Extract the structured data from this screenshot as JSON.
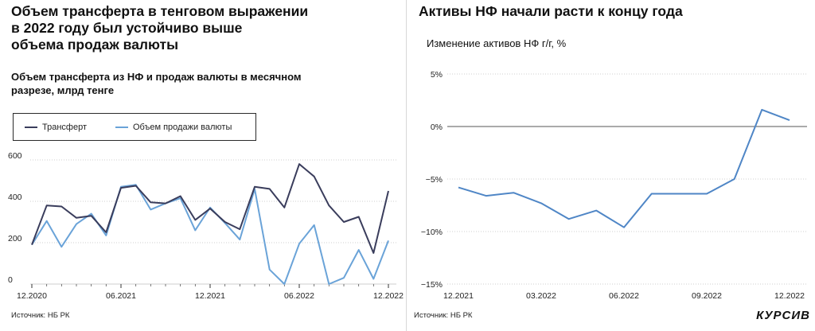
{
  "left": {
    "title_lines": [
      "Объем трансферта в тенговом выражении",
      "в 2022 году был устойчиво выше",
      "объема продаж валюты"
    ],
    "subtitle_lines": [
      "Объем трансферта из НФ и продаж валюты в месячном",
      "разрезе, млрд тенге"
    ],
    "source": "Источник: НБ РК"
  },
  "right": {
    "title": "Активы НФ начали расти к концу года",
    "subtitle": "Изменение активов НФ г/г, %",
    "source": "Источник: НБ РК",
    "logo": "КУРСИВ"
  },
  "chart_data": [
    {
      "type": "line",
      "categories": [
        "12.2020",
        "01.2021",
        "02.2021",
        "03.2021",
        "04.2021",
        "05.2021",
        "06.2021",
        "07.2021",
        "08.2021",
        "09.2021",
        "10.2021",
        "11.2021",
        "12.2021",
        "01.2022",
        "02.2022",
        "03.2022",
        "04.2022",
        "05.2022",
        "06.2022",
        "07.2022",
        "08.2022",
        "09.2022",
        "10.2022",
        "11.2022",
        "12.2022"
      ],
      "tick_labels": [
        "12.2020",
        "06.2021",
        "12.2021",
        "06.2022",
        "12.2022"
      ],
      "tick_indices": [
        0,
        6,
        12,
        18,
        24
      ],
      "yticks": [
        0,
        200,
        400,
        600
      ],
      "ylim": [
        0,
        650
      ],
      "series": [
        {
          "name": "Трансферт",
          "color": "#3a3d5c",
          "values": [
            190,
            380,
            375,
            320,
            330,
            250,
            465,
            475,
            395,
            390,
            425,
            310,
            365,
            300,
            265,
            470,
            460,
            370,
            580,
            520,
            380,
            300,
            325,
            150,
            450
          ]
        },
        {
          "name": "Объем продажи валюты",
          "color": "#6aa3d8",
          "values": [
            190,
            305,
            180,
            290,
            340,
            235,
            470,
            480,
            360,
            390,
            415,
            260,
            370,
            295,
            215,
            460,
            70,
            0,
            195,
            285,
            0,
            30,
            165,
            25,
            210
          ]
        }
      ]
    },
    {
      "type": "line",
      "categories": [
        "12.2021",
        "01.2022",
        "02.2022",
        "03.2022",
        "04.2022",
        "05.2022",
        "06.2022",
        "07.2022",
        "08.2022",
        "09.2022",
        "10.2022",
        "11.2022",
        "12.2022"
      ],
      "tick_labels": [
        "12.2021",
        "03.2022",
        "06.2022",
        "09.2022",
        "12.2022"
      ],
      "tick_indices": [
        0,
        3,
        6,
        9,
        12
      ],
      "yticks": [
        5,
        0,
        -5,
        -10,
        -15
      ],
      "ytick_labels": [
        "5%",
        "0%",
        "−5%",
        "−10%",
        "−15%"
      ],
      "ylim": [
        -15,
        5
      ],
      "series": [
        {
          "color": "#4f86c6",
          "values": [
            -5.8,
            -6.6,
            -6.3,
            -7.3,
            -8.8,
            -8.0,
            -9.6,
            -6.4,
            -6.4,
            -6.4,
            -5.0,
            1.6,
            0.6
          ]
        }
      ]
    }
  ]
}
